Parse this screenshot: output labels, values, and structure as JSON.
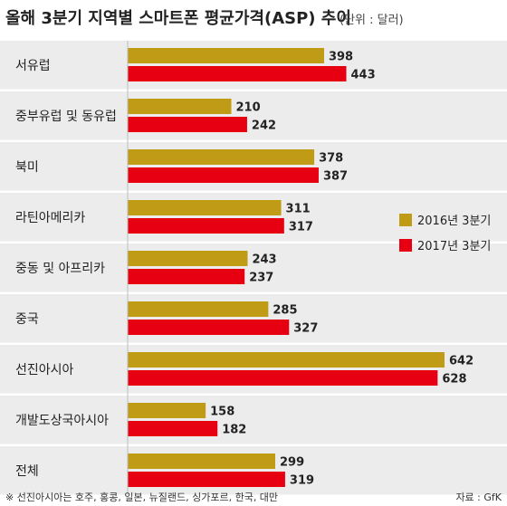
{
  "title": "올해 3분기 지역별 스마트폰 평균가격(ASP) 추이",
  "unit_note": "(단위 : 달러)",
  "footnote": "※ 선진아시아는 호주, 홍콩, 일본, 뉴질랜드, 싱가포르, 한국, 대만",
  "source": "자료 : GfK",
  "colors": {
    "series_2016": "#bf9b16",
    "series_2017": "#e60012",
    "band": "#ececec"
  },
  "chart_data": {
    "type": "bar",
    "orientation": "horizontal",
    "title": "올해 3분기 지역별 스마트폰 평균가격(ASP) 추이",
    "unit": "(단위 : 달러)",
    "categories": [
      "서유럽",
      "중부유럽 및 동유럽",
      "북미",
      "라틴아메리카",
      "중동 및 아프리카",
      "중국",
      "선진아시아",
      "개발도상국아시아",
      "전체"
    ],
    "series": [
      {
        "name": "2016년 3분기",
        "values": [
          398,
          210,
          378,
          311,
          243,
          285,
          642,
          158,
          299
        ]
      },
      {
        "name": "2017년 3분기",
        "values": [
          443,
          242,
          387,
          317,
          237,
          327,
          628,
          182,
          319
        ]
      }
    ],
    "xlim": [
      0,
      660
    ],
    "legend": "right"
  }
}
